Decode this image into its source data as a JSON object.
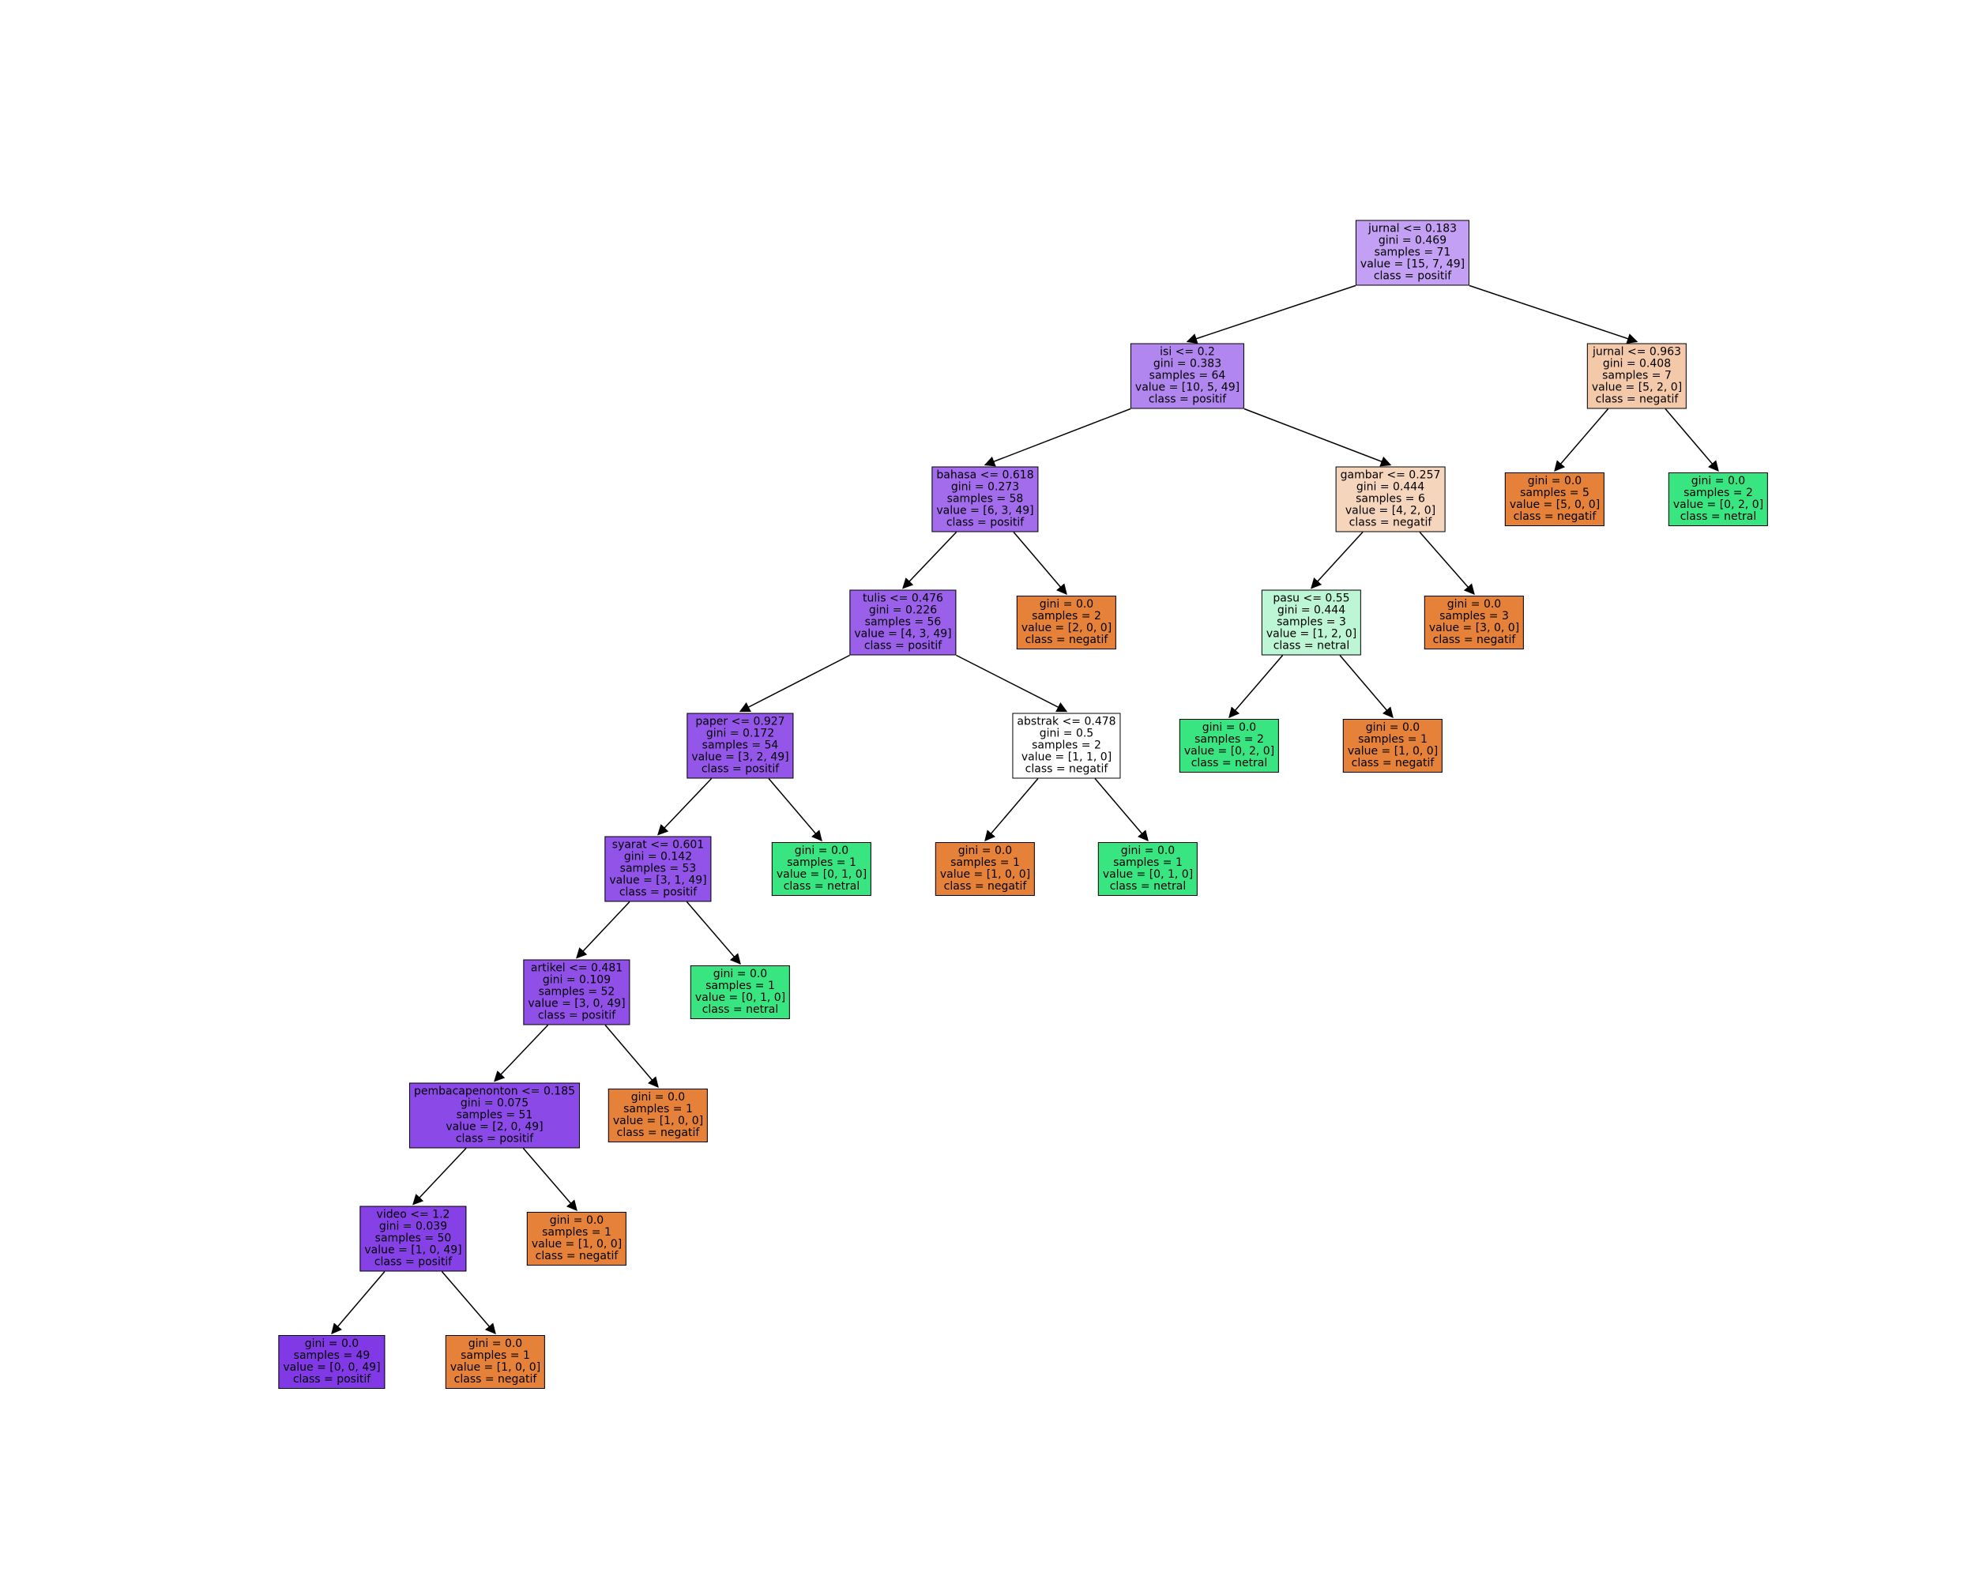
{
  "colors": {
    "negatif": "#e58139",
    "netral": "#39e581",
    "positif": "#8139e5"
  },
  "tree": {
    "nodes": [
      {
        "id": "n0",
        "lines": [
          "jurnal <= 0.183",
          "gini = 0.469",
          "samples = 71",
          "value = [15, 7, 49]",
          "class = positif"
        ],
        "class": "positif",
        "values": [
          15,
          7,
          49
        ]
      },
      {
        "id": "n1",
        "lines": [
          "isi <= 0.2",
          "gini = 0.383",
          "samples = 64",
          "value = [10, 5, 49]",
          "class = positif"
        ],
        "class": "positif",
        "values": [
          10,
          5,
          49
        ]
      },
      {
        "id": "n2",
        "lines": [
          "bahasa <= 0.618",
          "gini = 0.273",
          "samples = 58",
          "value = [6, 3, 49]",
          "class = positif"
        ],
        "class": "positif",
        "values": [
          6,
          3,
          49
        ]
      },
      {
        "id": "n3",
        "lines": [
          "tulis <= 0.476",
          "gini = 0.226",
          "samples = 56",
          "value = [4, 3, 49]",
          "class = positif"
        ],
        "class": "positif",
        "values": [
          4,
          3,
          49
        ]
      },
      {
        "id": "n4",
        "lines": [
          "paper <= 0.927",
          "gini = 0.172",
          "samples = 54",
          "value = [3, 2, 49]",
          "class = positif"
        ],
        "class": "positif",
        "values": [
          3,
          2,
          49
        ]
      },
      {
        "id": "n5",
        "lines": [
          "syarat <= 0.601",
          "gini = 0.142",
          "samples = 53",
          "value = [3, 1, 49]",
          "class = positif"
        ],
        "class": "positif",
        "values": [
          3,
          1,
          49
        ]
      },
      {
        "id": "n6",
        "lines": [
          "artikel <= 0.481",
          "gini = 0.109",
          "samples = 52",
          "value = [3, 0, 49]",
          "class = positif"
        ],
        "class": "positif",
        "values": [
          3,
          0,
          49
        ]
      },
      {
        "id": "n7",
        "lines": [
          "pembacapenonton <= 0.185",
          "gini = 0.075",
          "samples = 51",
          "value = [2, 0, 49]",
          "class = positif"
        ],
        "class": "positif",
        "values": [
          2,
          0,
          49
        ]
      },
      {
        "id": "n8",
        "lines": [
          "video <= 1.2",
          "gini = 0.039",
          "samples = 50",
          "value = [1, 0, 49]",
          "class = positif"
        ],
        "class": "positif",
        "values": [
          1,
          0,
          49
        ]
      },
      {
        "id": "n9",
        "lines": [
          "gini = 0.0",
          "samples = 49",
          "value = [0, 0, 49]",
          "class = positif"
        ],
        "class": "positif",
        "values": [
          0,
          0,
          49
        ]
      },
      {
        "id": "n10",
        "lines": [
          "gini = 0.0",
          "samples = 1",
          "value = [1, 0, 0]",
          "class = negatif"
        ],
        "class": "negatif",
        "values": [
          1,
          0,
          0
        ]
      },
      {
        "id": "n11",
        "lines": [
          "gini = 0.0",
          "samples = 1",
          "value = [1, 0, 0]",
          "class = negatif"
        ],
        "class": "negatif",
        "values": [
          1,
          0,
          0
        ]
      },
      {
        "id": "n12",
        "lines": [
          "gini = 0.0",
          "samples = 1",
          "value = [1, 0, 0]",
          "class = negatif"
        ],
        "class": "negatif",
        "values": [
          1,
          0,
          0
        ]
      },
      {
        "id": "n13",
        "lines": [
          "gini = 0.0",
          "samples = 1",
          "value = [0, 1, 0]",
          "class = netral"
        ],
        "class": "netral",
        "values": [
          0,
          1,
          0
        ]
      },
      {
        "id": "n14",
        "lines": [
          "gini = 0.0",
          "samples = 1",
          "value = [0, 1, 0]",
          "class = netral"
        ],
        "class": "netral",
        "values": [
          0,
          1,
          0
        ]
      },
      {
        "id": "n15",
        "lines": [
          "abstrak <= 0.478",
          "gini = 0.5",
          "samples = 2",
          "value = [1, 1, 0]",
          "class = negatif"
        ],
        "class": "negatif",
        "values": [
          1,
          1,
          0
        ]
      },
      {
        "id": "n16",
        "lines": [
          "gini = 0.0",
          "samples = 1",
          "value = [1, 0, 0]",
          "class = negatif"
        ],
        "class": "negatif",
        "values": [
          1,
          0,
          0
        ]
      },
      {
        "id": "n17",
        "lines": [
          "gini = 0.0",
          "samples = 1",
          "value = [0, 1, 0]",
          "class = netral"
        ],
        "class": "netral",
        "values": [
          0,
          1,
          0
        ]
      },
      {
        "id": "n18",
        "lines": [
          "gini = 0.0",
          "samples = 2",
          "value = [2, 0, 0]",
          "class = negatif"
        ],
        "class": "negatif",
        "values": [
          2,
          0,
          0
        ]
      },
      {
        "id": "n19",
        "lines": [
          "gambar <= 0.257",
          "gini = 0.444",
          "samples = 6",
          "value = [4, 2, 0]",
          "class = negatif"
        ],
        "class": "negatif",
        "values": [
          4,
          2,
          0
        ]
      },
      {
        "id": "n20",
        "lines": [
          "pasu <= 0.55",
          "gini = 0.444",
          "samples = 3",
          "value = [1, 2, 0]",
          "class = netral"
        ],
        "class": "netral",
        "values": [
          1,
          2,
          0
        ]
      },
      {
        "id": "n21",
        "lines": [
          "gini = 0.0",
          "samples = 2",
          "value = [0, 2, 0]",
          "class = netral"
        ],
        "class": "netral",
        "values": [
          0,
          2,
          0
        ]
      },
      {
        "id": "n22",
        "lines": [
          "gini = 0.0",
          "samples = 1",
          "value = [1, 0, 0]",
          "class = negatif"
        ],
        "class": "negatif",
        "values": [
          1,
          0,
          0
        ]
      },
      {
        "id": "n23",
        "lines": [
          "gini = 0.0",
          "samples = 3",
          "value = [3, 0, 0]",
          "class = negatif"
        ],
        "class": "negatif",
        "values": [
          3,
          0,
          0
        ]
      },
      {
        "id": "n24",
        "lines": [
          "jurnal <= 0.963",
          "gini = 0.408",
          "samples = 7",
          "value = [5, 2, 0]",
          "class = negatif"
        ],
        "class": "negatif",
        "values": [
          5,
          2,
          0
        ]
      },
      {
        "id": "n25",
        "lines": [
          "gini = 0.0",
          "samples = 5",
          "value = [5, 0, 0]",
          "class = negatif"
        ],
        "class": "negatif",
        "values": [
          5,
          0,
          0
        ]
      },
      {
        "id": "n26",
        "lines": [
          "gini = 0.0",
          "samples = 2",
          "value = [0, 2, 0]",
          "class = netral"
        ],
        "class": "netral",
        "values": [
          0,
          2,
          0
        ]
      }
    ],
    "edges": [
      [
        "n0",
        "n1"
      ],
      [
        "n0",
        "n24"
      ],
      [
        "n1",
        "n2"
      ],
      [
        "n1",
        "n19"
      ],
      [
        "n2",
        "n3"
      ],
      [
        "n2",
        "n18"
      ],
      [
        "n3",
        "n4"
      ],
      [
        "n3",
        "n15"
      ],
      [
        "n4",
        "n5"
      ],
      [
        "n4",
        "n14"
      ],
      [
        "n5",
        "n6"
      ],
      [
        "n5",
        "n13"
      ],
      [
        "n6",
        "n7"
      ],
      [
        "n6",
        "n12"
      ],
      [
        "n7",
        "n8"
      ],
      [
        "n7",
        "n11"
      ],
      [
        "n8",
        "n9"
      ],
      [
        "n8",
        "n10"
      ],
      [
        "n15",
        "n16"
      ],
      [
        "n15",
        "n17"
      ],
      [
        "n19",
        "n20"
      ],
      [
        "n19",
        "n23"
      ],
      [
        "n20",
        "n21"
      ],
      [
        "n20",
        "n22"
      ],
      [
        "n24",
        "n25"
      ],
      [
        "n24",
        "n26"
      ]
    ]
  }
}
